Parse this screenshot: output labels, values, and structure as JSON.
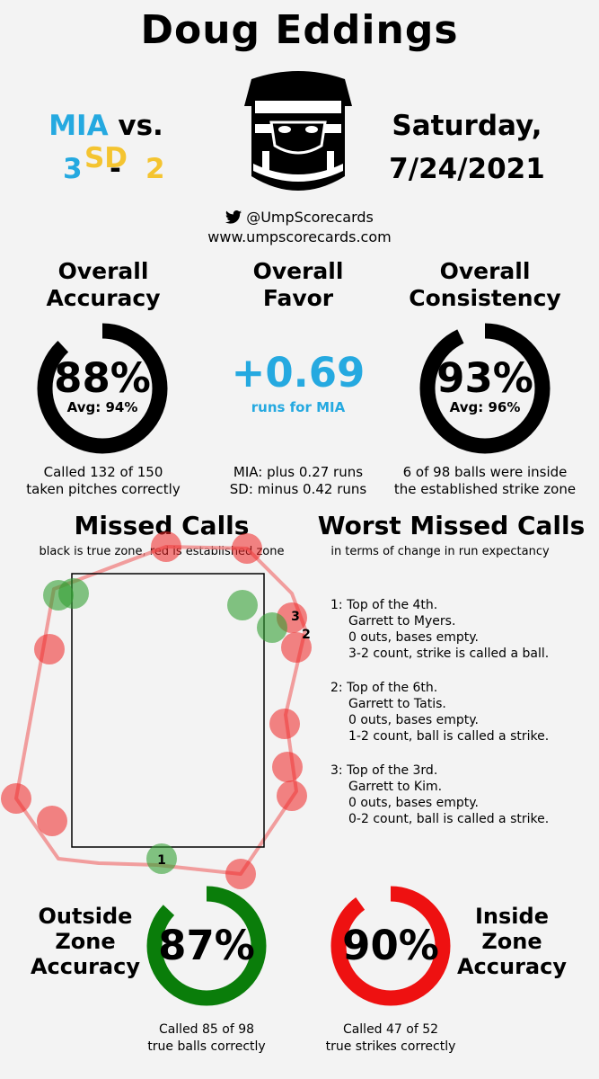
{
  "umpire_name": "Doug Eddings",
  "game": {
    "away": "MIA",
    "vs": "vs.",
    "home": "SD",
    "away_score": "3",
    "dash": "-",
    "home_score": "2",
    "day": "Saturday,",
    "date": "7/24/2021"
  },
  "social": {
    "twitter": "@UmpScorecards",
    "site": "www.umpscorecards.com"
  },
  "accuracy": {
    "title_line1": "Overall",
    "title_line2": "Accuracy",
    "value": "88%",
    "avg": "Avg: 94%",
    "note_line1": "Called 132 of 150",
    "note_line2": "taken pitches correctly",
    "fraction": 0.88
  },
  "favor": {
    "title_line1": "Overall",
    "title_line2": "Favor",
    "value": "+0.69",
    "sub": "runs for MIA",
    "note_line1": "MIA: plus 0.27 runs",
    "note_line2": "SD: minus 0.42 runs",
    "color": "#25a9e0"
  },
  "consistency": {
    "title_line1": "Overall",
    "title_line2": "Consistency",
    "value": "93%",
    "avg": "Avg: 96%",
    "note_line1": "6 of 98 balls were inside",
    "note_line2": "the established strike zone",
    "fraction": 0.93
  },
  "missed_calls": {
    "title": "Missed Calls",
    "subtitle": "black is true zone, red is established zone"
  },
  "worst_missed": {
    "title": "Worst Missed Calls",
    "subtitle": "in terms of change in run expectancy",
    "items": [
      {
        "l1": "1: Top of the 4th.",
        "l2": "Garrett to Myers.",
        "l3": "0 outs, bases empty.",
        "l4": "3-2 count, strike is called a ball."
      },
      {
        "l1": "2: Top of the 6th.",
        "l2": "Garrett to Tatis.",
        "l3": "0 outs, bases empty.",
        "l4": "1-2 count, ball is called a strike."
      },
      {
        "l1": "3: Top of the 3rd.",
        "l2": "Garrett to Kim.",
        "l3": "0 outs, bases empty.",
        "l4": "0-2 count, ball is called a strike."
      }
    ]
  },
  "outside_zone": {
    "label_l1": "Outside",
    "label_l2": "Zone",
    "label_l3": "Accuracy",
    "value": "87%",
    "note_line1": "Called 85 of 98",
    "note_line2": "true balls correctly",
    "fraction": 0.87,
    "color": "#0a7d0a"
  },
  "inside_zone": {
    "label_l1": "Inside",
    "label_l2": "Zone",
    "label_l3": "Accuracy",
    "value": "90%",
    "note_line1": "Called 47 of 52",
    "note_line2": "true strikes correctly",
    "fraction": 0.9,
    "color": "#ee1111"
  },
  "pitch_labels": [
    "1",
    "2",
    "3"
  ],
  "colors": {
    "missed_ball_called_strike": "#ee2222",
    "missed_strike_called_ball": "#33a033"
  }
}
